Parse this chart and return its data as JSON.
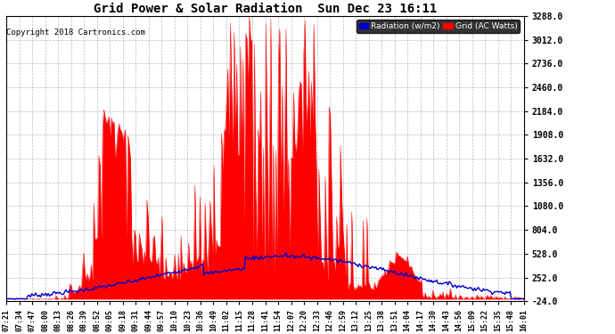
{
  "title": "Grid Power & Solar Radiation  Sun Dec 23 16:11",
  "copyright": "Copyright 2018 Cartronics.com",
  "legend_radiation": "Radiation (w/m2)",
  "legend_grid": "Grid (AC Watts)",
  "yticks": [
    -24.0,
    252.0,
    528.0,
    804.0,
    1080.0,
    1356.0,
    1632.0,
    1908.0,
    2184.0,
    2460.0,
    2736.0,
    3012.0,
    3288.0
  ],
  "ymin": -24.0,
  "ymax": 3288.0,
  "bg_color": "#ffffff",
  "grid_color": "#aaaaaa",
  "radiation_color": "#0000dd",
  "grid_power_color": "#ff0000",
  "xtick_labels": [
    "07:21",
    "07:34",
    "07:47",
    "08:00",
    "08:13",
    "08:26",
    "08:39",
    "08:52",
    "09:05",
    "09:18",
    "09:31",
    "09:44",
    "09:57",
    "10:10",
    "10:23",
    "10:36",
    "10:49",
    "11:02",
    "11:15",
    "11:28",
    "11:41",
    "11:54",
    "12:07",
    "12:20",
    "12:33",
    "12:46",
    "12:59",
    "13:12",
    "13:25",
    "13:38",
    "13:51",
    "14:04",
    "14:17",
    "14:30",
    "14:43",
    "14:56",
    "15:09",
    "15:22",
    "15:35",
    "15:48",
    "16:01"
  ],
  "n_points": 410
}
